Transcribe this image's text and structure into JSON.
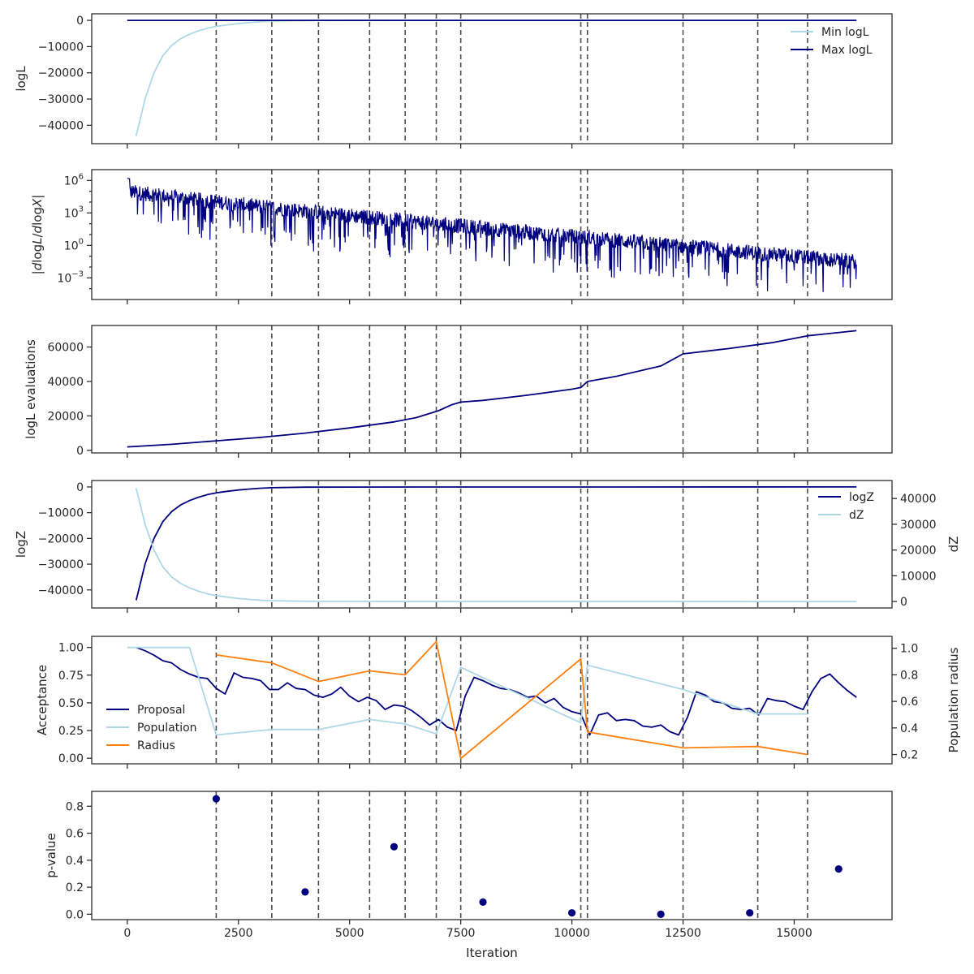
{
  "colors": {
    "navy": "#00007f",
    "lightblue": "#add8e6",
    "orange": "#ff7f0e",
    "dashed": "#4d4d4d"
  },
  "shared": {
    "xlabel": "Iteration",
    "xlim": [
      -800,
      17200
    ],
    "xticks": [
      0,
      2500,
      5000,
      7500,
      10000,
      12500,
      15000
    ],
    "vlines": [
      2000,
      3250,
      4300,
      5450,
      6250,
      6950,
      7500,
      10200,
      10350,
      12500,
      14180,
      15300
    ]
  },
  "chart_data": [
    {
      "type": "line",
      "ylabel": "logL",
      "ylim": [
        -47000,
        2500
      ],
      "yticks": [
        0,
        -10000,
        -20000,
        -30000,
        -40000
      ],
      "yticklabels": [
        "0",
        "−10000",
        "−20000",
        "−30000",
        "−40000"
      ],
      "legend": "top-right",
      "series": [
        {
          "name": "Min logL",
          "color": "lightblue",
          "x": [
            200,
            400,
            600,
            800,
            1000,
            1200,
            1400,
            1600,
            1800,
            2000,
            2250,
            2500,
            2750,
            3000,
            3250,
            4000,
            5000,
            7000,
            10000,
            16400
          ],
          "y": [
            -44000,
            -30000,
            -20000,
            -13500,
            -9500,
            -7000,
            -5300,
            -4000,
            -3000,
            -2300,
            -1700,
            -1200,
            -800,
            -500,
            -300,
            -100,
            -50,
            -20,
            -10,
            0
          ]
        },
        {
          "name": "Max logL",
          "color": "navy",
          "x": [
            0,
            16400
          ],
          "y": [
            0,
            0
          ]
        }
      ]
    },
    {
      "type": "line",
      "ylabel": "|dlogL/dlogX|",
      "yscale": "log",
      "ylim_exp": [
        -5,
        7
      ],
      "yticks_exp": [
        6,
        3,
        0,
        -3
      ],
      "series": [
        {
          "name": "",
          "color": "navy",
          "x_range": [
            0,
            16400
          ],
          "trend_start_exp": 5.0,
          "trend_end_exp": -1.5
        }
      ]
    },
    {
      "type": "line",
      "ylabel": "logL evaluations",
      "ylim": [
        -1500,
        72500
      ],
      "yticks": [
        0,
        20000,
        40000,
        60000
      ],
      "yticklabels": [
        "0",
        "20000",
        "40000",
        "60000"
      ],
      "series": [
        {
          "name": "",
          "color": "navy",
          "x": [
            0,
            1000,
            2000,
            3000,
            4000,
            5000,
            6000,
            6500,
            7000,
            7300,
            7500,
            8000,
            9000,
            10000,
            10200,
            10350,
            11000,
            12000,
            12500,
            13500,
            14500,
            15300,
            16400
          ],
          "y": [
            2000,
            3500,
            5500,
            7500,
            10000,
            13000,
            16500,
            19000,
            23000,
            26500,
            28000,
            29000,
            32000,
            35500,
            36500,
            40000,
            43000,
            49000,
            56000,
            59000,
            62500,
            66500,
            69500
          ]
        }
      ]
    },
    {
      "type": "line",
      "ylabel": "logZ",
      "ylabel_right": "dZ",
      "ylim": [
        -47000,
        2500
      ],
      "yticks": [
        0,
        -10000,
        -20000,
        -30000,
        -40000
      ],
      "yticklabels": [
        "0",
        "−10000",
        "−20000",
        "−30000",
        "−40000"
      ],
      "ylim_right": [
        -2500,
        47000
      ],
      "yticks_right": [
        0,
        10000,
        20000,
        30000,
        40000
      ],
      "yticklabels_right": [
        "0",
        "10000",
        "20000",
        "30000",
        "40000"
      ],
      "legend": "top-right",
      "series": [
        {
          "name": "logZ",
          "color": "navy",
          "axis": "left",
          "x": [
            200,
            400,
            600,
            800,
            1000,
            1200,
            1400,
            1600,
            1800,
            2000,
            2250,
            2500,
            2750,
            3000,
            3250,
            4000,
            5000,
            7000,
            10000,
            16400
          ],
          "y": [
            -44000,
            -30000,
            -20000,
            -13500,
            -9500,
            -7000,
            -5300,
            -4000,
            -3000,
            -2300,
            -1700,
            -1200,
            -800,
            -500,
            -300,
            -100,
            -50,
            -20,
            -10,
            0
          ]
        },
        {
          "name": "dZ",
          "color": "lightblue",
          "axis": "right",
          "x": [
            200,
            400,
            600,
            800,
            1000,
            1200,
            1400,
            1600,
            1800,
            2000,
            2250,
            2500,
            2750,
            3000,
            3250,
            4000,
            5000,
            7000,
            10000,
            16400
          ],
          "y": [
            44000,
            30000,
            20000,
            13500,
            9500,
            7000,
            5300,
            4000,
            3000,
            2300,
            1700,
            1200,
            800,
            500,
            300,
            100,
            50,
            20,
            10,
            0
          ]
        }
      ]
    },
    {
      "type": "line",
      "ylabel": "Acceptance",
      "ylabel_right": "Population radius",
      "ylim": [
        -0.05,
        1.1
      ],
      "yticks": [
        0,
        0.25,
        0.5,
        0.75,
        1.0
      ],
      "yticklabels": [
        "0.00",
        "0.25",
        "0.50",
        "0.75",
        "1.00"
      ],
      "ylim_right": [
        0.13,
        1.09
      ],
      "yticks_right": [
        0.2,
        0.4,
        0.6,
        0.8,
        1.0
      ],
      "yticklabels_right": [
        "0.2",
        "0.4",
        "0.6",
        "0.8",
        "1.0"
      ],
      "legend": "lower-left",
      "series": [
        {
          "name": "Proposal",
          "color": "navy",
          "axis": "left",
          "x": [
            200,
            400,
            600,
            800,
            1000,
            1200,
            1400,
            1600,
            1800,
            2000,
            2200,
            2400,
            2600,
            2800,
            3000,
            3200,
            3400,
            3600,
            3800,
            4000,
            4200,
            4400,
            4600,
            4800,
            5000,
            5200,
            5400,
            5600,
            5800,
            6000,
            6200,
            6400,
            6600,
            6800,
            7000,
            7200,
            7400,
            7600,
            7800,
            8000,
            8200,
            8400,
            8600,
            8800,
            9000,
            9200,
            9400,
            9600,
            9800,
            10000,
            10200,
            10400,
            10600,
            10800,
            11000,
            11200,
            11400,
            11600,
            11800,
            12000,
            12200,
            12400,
            12600,
            12800,
            13000,
            13200,
            13400,
            13600,
            13800,
            14000,
            14200,
            14400,
            14600,
            14800,
            15000,
            15200,
            15400,
            15600,
            15800,
            16000,
            16200,
            16400
          ],
          "y": [
            1.0,
            0.97,
            0.93,
            0.88,
            0.86,
            0.8,
            0.76,
            0.73,
            0.72,
            0.63,
            0.58,
            0.77,
            0.73,
            0.72,
            0.7,
            0.62,
            0.62,
            0.68,
            0.63,
            0.62,
            0.57,
            0.55,
            0.58,
            0.64,
            0.56,
            0.51,
            0.55,
            0.52,
            0.44,
            0.48,
            0.47,
            0.43,
            0.37,
            0.3,
            0.35,
            0.28,
            0.25,
            0.56,
            0.73,
            0.7,
            0.66,
            0.63,
            0.62,
            0.59,
            0.55,
            0.56,
            0.5,
            0.54,
            0.46,
            0.42,
            0.4,
            0.21,
            0.39,
            0.41,
            0.34,
            0.35,
            0.34,
            0.29,
            0.28,
            0.3,
            0.24,
            0.21,
            0.37,
            0.6,
            0.57,
            0.51,
            0.5,
            0.45,
            0.44,
            0.45,
            0.39,
            0.54,
            0.52,
            0.51,
            0.47,
            0.44,
            0.6,
            0.72,
            0.76,
            0.68,
            0.61,
            0.55
          ]
        },
        {
          "name": "Population",
          "color": "lightblue",
          "axis": "left",
          "x": [
            0,
            1400,
            2000,
            3250,
            4300,
            5450,
            6250,
            6950,
            7500,
            10200,
            10350,
            12500,
            14180,
            15300
          ],
          "y": [
            1.0,
            1.0,
            0.21,
            0.26,
            0.26,
            0.35,
            0.31,
            0.22,
            0.82,
            0.32,
            0.84,
            0.62,
            0.4,
            0.4
          ]
        },
        {
          "name": "Radius",
          "color": "orange",
          "axis": "right",
          "x": [
            2000,
            3250,
            4300,
            5450,
            6250,
            6950,
            7500,
            10200,
            10350,
            12500,
            14180,
            15300
          ],
          "y": [
            0.95,
            0.89,
            0.75,
            0.83,
            0.8,
            1.05,
            0.17,
            0.92,
            0.37,
            0.25,
            0.26,
            0.2
          ]
        }
      ]
    },
    {
      "type": "scatter",
      "ylabel": "p-value",
      "ylim": [
        -0.04,
        0.91
      ],
      "yticks": [
        0,
        0.2,
        0.4,
        0.6,
        0.8
      ],
      "yticklabels": [
        "0.0",
        "0.2",
        "0.4",
        "0.6",
        "0.8"
      ],
      "series": [
        {
          "name": "",
          "color": "navy",
          "x": [
            2000,
            4000,
            6000,
            8000,
            10000,
            12000,
            14000,
            16000
          ],
          "y": [
            0.855,
            0.165,
            0.5,
            0.09,
            0.01,
            0.0,
            0.01,
            0.335
          ]
        }
      ]
    }
  ]
}
